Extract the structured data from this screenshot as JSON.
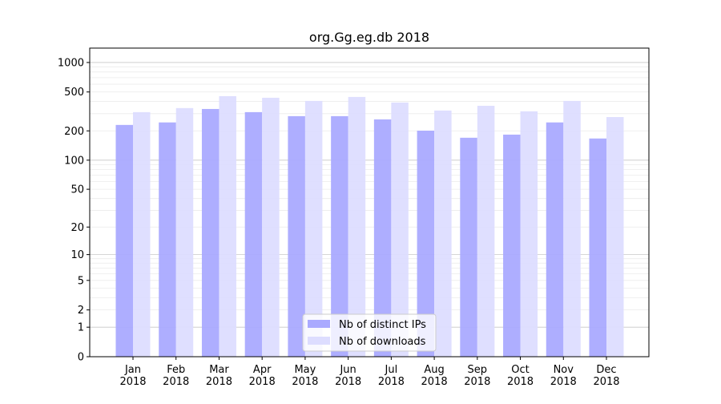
{
  "chart_data": {
    "type": "bar",
    "title": "org.Gg.eg.db 2018",
    "xlabel": "",
    "ylabel": "",
    "y_scale": "log10(1+y)",
    "ylim": [
      0,
      1300
    ],
    "y_ticks": [
      0,
      1,
      2,
      5,
      10,
      20,
      50,
      100,
      200,
      500,
      1000
    ],
    "grid": true,
    "legend_position": "bottom-center",
    "categories": [
      "Jan\n2018",
      "Feb\n2018",
      "Mar\n2018",
      "Apr\n2018",
      "May\n2018",
      "Jun\n2018",
      "Jul\n2018",
      "Aug\n2018",
      "Sep\n2018",
      "Oct\n2018",
      "Nov\n2018",
      "Dec\n2018"
    ],
    "series": [
      {
        "name": "Nb of distinct IPs",
        "color": "#aaaaff",
        "values": [
          230,
          244,
          335,
          311,
          283,
          283,
          262,
          201,
          170,
          183,
          244,
          167
        ]
      },
      {
        "name": "Nb of downloads",
        "color": "#ddddff",
        "values": [
          311,
          342,
          453,
          436,
          405,
          445,
          390,
          323,
          361,
          317,
          405,
          277
        ]
      }
    ]
  }
}
